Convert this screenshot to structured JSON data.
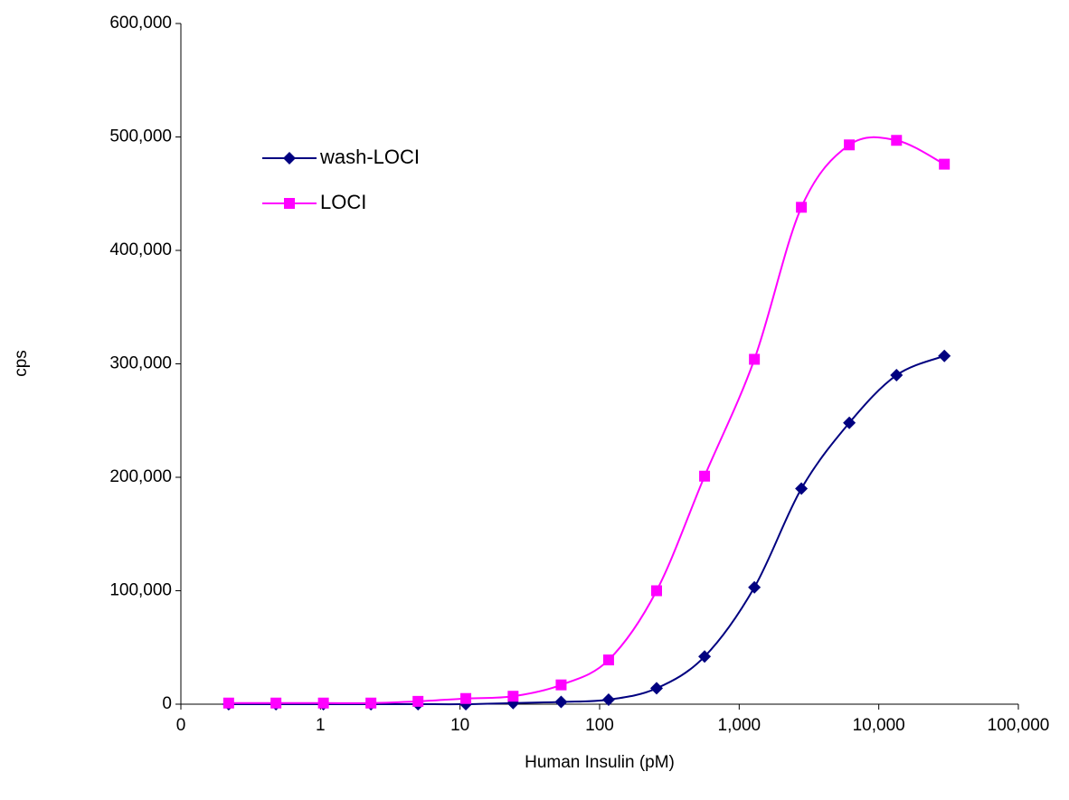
{
  "chart_data": {
    "type": "line",
    "x_label": "Human Insulin (pM)",
    "y_label": "cps",
    "x_scale": "log",
    "smooth": true,
    "legend": "upper left",
    "x": [
      0.22,
      0.48,
      1.05,
      2.3,
      5,
      11,
      24,
      53,
      116,
      256,
      565,
      1285,
      2790,
      6150,
      13400,
      29500
    ],
    "series": [
      {
        "name": "wash-LOCI",
        "color": "#000080",
        "marker": "diamond",
        "values": [
          0,
          0,
          0,
          0,
          0,
          0,
          1000,
          2000,
          4000,
          14000,
          42000,
          103000,
          190000,
          248000,
          290000,
          307000
        ]
      },
      {
        "name": "LOCI",
        "color": "#ff00ff",
        "marker": "square",
        "values": [
          1000,
          1000,
          1000,
          1000,
          2500,
          5000,
          7000,
          17000,
          39000,
          100000,
          201000,
          304000,
          438000,
          493000,
          497000,
          476000
        ]
      }
    ],
    "xlim": [
      0.1,
      100000
    ],
    "xticks": [
      {
        "value": 0.1,
        "label": "0"
      },
      1,
      10,
      100,
      {
        "value": 1000,
        "label": "1,000"
      },
      {
        "value": 10000,
        "label": "10,000"
      },
      {
        "value": 100000,
        "label": "100,000"
      }
    ],
    "ylim": [
      0,
      600000
    ],
    "yticks": [
      0,
      {
        "value": 100000,
        "label": "100,000"
      },
      {
        "value": 200000,
        "label": "200,000"
      },
      {
        "value": 300000,
        "label": "300,000"
      },
      {
        "value": 400000,
        "label": "400,000"
      },
      {
        "value": 500000,
        "label": "500,000"
      },
      {
        "value": 600000,
        "label": "600,000"
      }
    ]
  }
}
